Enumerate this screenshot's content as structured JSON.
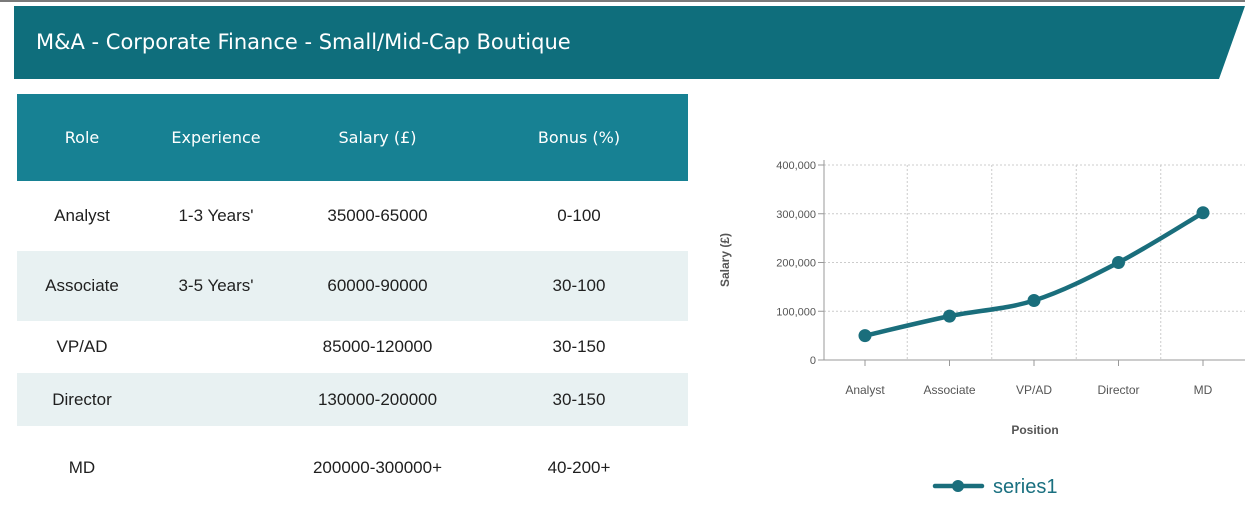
{
  "banner": {
    "title": "M&A - Corporate Finance - Small/Mid-Cap Boutique",
    "color": "#0f6e7c"
  },
  "table": {
    "headers": [
      "Role",
      "Experience",
      "Salary (£)",
      "Bonus (%)"
    ],
    "header_color": "#178193",
    "rows": [
      {
        "role": "Analyst",
        "experience": "1-3 Years'",
        "salary": "35000-65000",
        "bonus": "0-100"
      },
      {
        "role": "Associate",
        "experience": "3-5 Years'",
        "salary": "60000-90000",
        "bonus": "30-100"
      },
      {
        "role": "VP/AD",
        "experience": "",
        "salary": "85000-120000",
        "bonus": "30-150"
      },
      {
        "role": "Director",
        "experience": "",
        "salary": "130000-200000",
        "bonus": "30-150"
      },
      {
        "role": "MD",
        "experience": "",
        "salary": "200000-300000+",
        "bonus": "40-200+"
      }
    ]
  },
  "chart_data": {
    "type": "line",
    "categories": [
      "Analyst",
      "Associate",
      "VP/AD",
      "Director",
      "MD"
    ],
    "series": [
      {
        "name": "series1",
        "values": [
          50000,
          90000,
          122000,
          200000,
          302000
        ],
        "color": "#1a6e7c"
      }
    ],
    "xlabel": "Position",
    "ylabel": "Salary (£)",
    "ylim": [
      0,
      400000
    ],
    "yticks": [
      0,
      100000,
      200000,
      300000,
      400000
    ],
    "ytick_labels": [
      "0",
      "100,000",
      "200,000",
      "300,000",
      "400,000"
    ],
    "grid": true,
    "legend": "bottom"
  }
}
